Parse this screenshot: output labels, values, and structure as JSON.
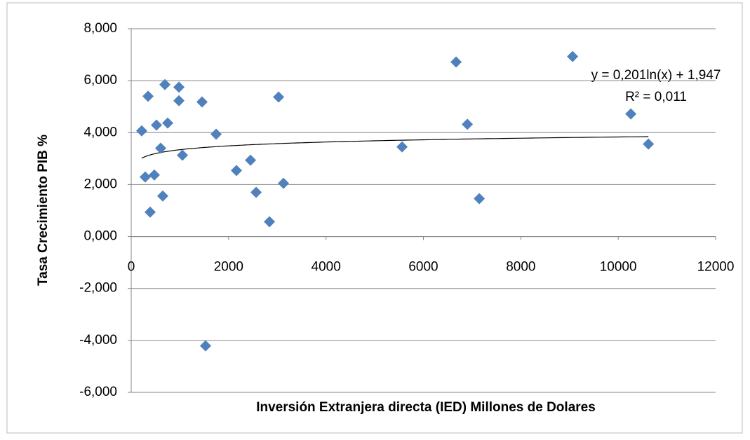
{
  "chart_data": {
    "type": "scatter",
    "x_label": "Inversión Extranjera directa (IED) Millones de Dolares",
    "y_label": "Tasa  Crecimiento PIB %",
    "trendline_label": "y = 0,201ln(x) + 1,947",
    "r2_label": "R² = 0,011",
    "series": [
      {
        "color": "#4f81bd",
        "x": [
          216,
          346,
          288,
          389,
          475,
          519,
          605,
          648,
          692,
          749,
          980,
          980,
          1052,
          1455,
          1527,
          1744,
          2161,
          2450,
          2565,
          2839,
          3026,
          3127,
          5562,
          6671,
          6902,
          7147,
          9063,
          10259,
          10620
        ],
        "values": [
          4.07,
          5.4,
          2.29,
          0.94,
          2.37,
          4.29,
          3.4,
          1.56,
          5.85,
          4.37,
          5.75,
          5.23,
          3.13,
          5.18,
          -4.21,
          3.94,
          2.54,
          2.94,
          1.7,
          0.57,
          5.37,
          2.05,
          3.45,
          6.72,
          4.32,
          1.46,
          6.93,
          4.72,
          3.56
        ]
      }
    ],
    "xlim": [
      0,
      12000
    ],
    "xticks": [
      0,
      2000,
      4000,
      6000,
      8000,
      10000,
      12000
    ],
    "ylim": [
      -6,
      8
    ],
    "yticks": [
      {
        "value": -6,
        "label": "-6,000"
      },
      {
        "value": -4,
        "label": "-4,000"
      },
      {
        "value": -2,
        "label": "-2,000"
      },
      {
        "value": 0,
        "label": "0,000"
      },
      {
        "value": 2,
        "label": "2,000"
      },
      {
        "value": 4,
        "label": "4,000"
      },
      {
        "value": 6,
        "label": "6,000"
      },
      {
        "value": 8,
        "label": "8,000"
      }
    ],
    "grid": true
  }
}
